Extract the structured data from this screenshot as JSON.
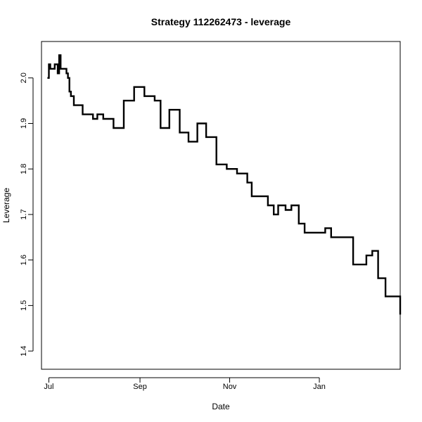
{
  "chart_data": {
    "type": "line",
    "title": "Strategy 112262473 - leverage",
    "xlabel": "Date",
    "ylabel": "Leverage",
    "x_ticks": [
      "Jul",
      "Sep",
      "Nov",
      "Jan"
    ],
    "y_ticks": [
      "1.4",
      "1.5",
      "1.6",
      "1.7",
      "1.8",
      "1.9",
      "2.0"
    ],
    "ylim": [
      1.36,
      2.08
    ],
    "xlim": [
      "2023-06-26",
      "2024-02-25"
    ],
    "grid": false,
    "step": true,
    "series": [
      {
        "color": "#000000",
        "points": [
          [
            "2023-06-30",
            2.0
          ],
          [
            "2023-07-01",
            2.03
          ],
          [
            "2023-07-02",
            2.02
          ],
          [
            "2023-07-05",
            2.03
          ],
          [
            "2023-07-07",
            2.01
          ],
          [
            "2023-07-08",
            2.05
          ],
          [
            "2023-07-09",
            2.02
          ],
          [
            "2023-07-13",
            2.01
          ],
          [
            "2023-07-14",
            2.0
          ],
          [
            "2023-07-15",
            1.97
          ],
          [
            "2023-07-16",
            1.96
          ],
          [
            "2023-07-18",
            1.94
          ],
          [
            "2023-07-24",
            1.92
          ],
          [
            "2023-07-31",
            1.91
          ],
          [
            "2023-08-03",
            1.92
          ],
          [
            "2023-08-07",
            1.91
          ],
          [
            "2023-08-14",
            1.89
          ],
          [
            "2023-08-21",
            1.95
          ],
          [
            "2023-08-28",
            1.98
          ],
          [
            "2023-09-04",
            1.96
          ],
          [
            "2023-09-11",
            1.95
          ],
          [
            "2023-09-15",
            1.89
          ],
          [
            "2023-09-21",
            1.93
          ],
          [
            "2023-09-28",
            1.88
          ],
          [
            "2023-10-04",
            1.86
          ],
          [
            "2023-10-10",
            1.9
          ],
          [
            "2023-10-16",
            1.87
          ],
          [
            "2023-10-23",
            1.81
          ],
          [
            "2023-10-30",
            1.8
          ],
          [
            "2023-11-06",
            1.79
          ],
          [
            "2023-11-13",
            1.77
          ],
          [
            "2023-11-16",
            1.74
          ],
          [
            "2023-11-27",
            1.72
          ],
          [
            "2023-12-01",
            1.7
          ],
          [
            "2023-12-04",
            1.72
          ],
          [
            "2023-12-09",
            1.71
          ],
          [
            "2023-12-13",
            1.72
          ],
          [
            "2023-12-18",
            1.68
          ],
          [
            "2023-12-22",
            1.66
          ],
          [
            "2024-01-05",
            1.67
          ],
          [
            "2024-01-09",
            1.65
          ],
          [
            "2024-01-24",
            1.59
          ],
          [
            "2024-02-02",
            1.61
          ],
          [
            "2024-02-06",
            1.62
          ],
          [
            "2024-02-10",
            1.56
          ],
          [
            "2024-02-15",
            1.52
          ],
          [
            "2024-02-25",
            1.48
          ]
        ]
      }
    ]
  }
}
